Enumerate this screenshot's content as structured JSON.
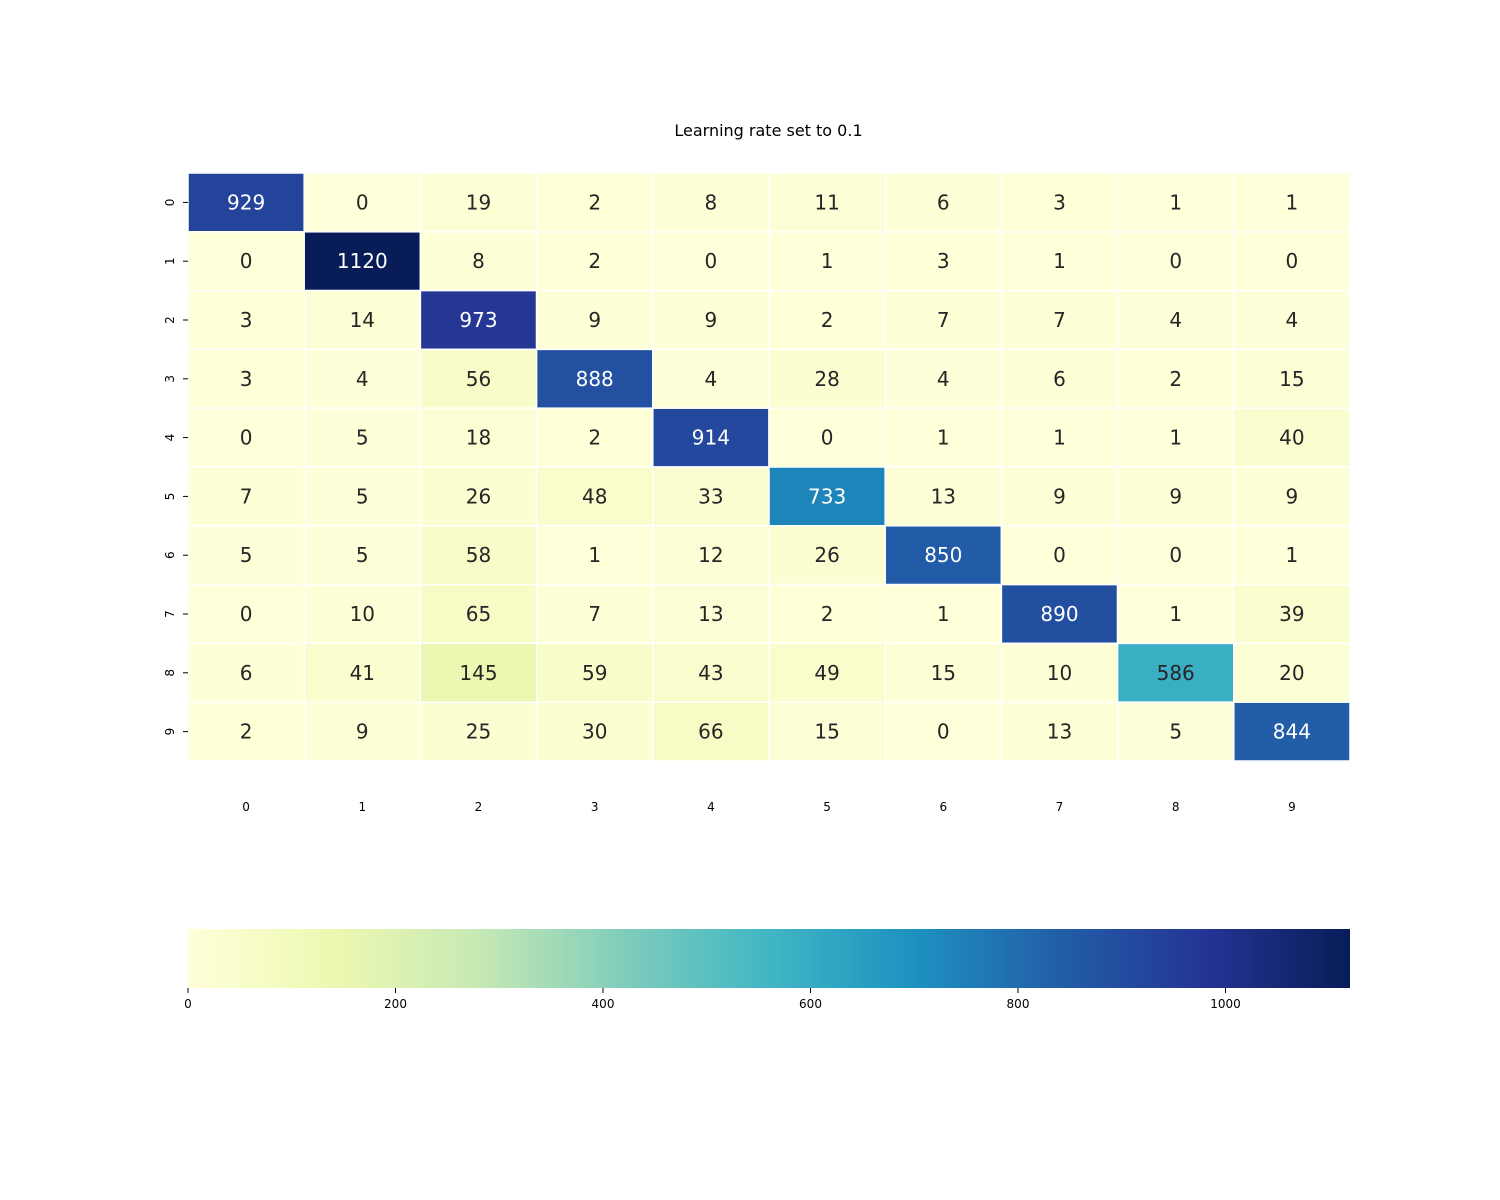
{
  "chart_data": {
    "type": "heatmap",
    "title": "Learning rate set to 0.1",
    "xlabel": "",
    "ylabel": "",
    "x_categories": [
      "0",
      "1",
      "2",
      "3",
      "4",
      "5",
      "6",
      "7",
      "8",
      "9"
    ],
    "y_categories": [
      "0",
      "1",
      "2",
      "3",
      "4",
      "5",
      "6",
      "7",
      "8",
      "9"
    ],
    "values": [
      [
        929,
        0,
        19,
        2,
        8,
        11,
        6,
        3,
        1,
        1
      ],
      [
        0,
        1120,
        8,
        2,
        0,
        1,
        3,
        1,
        0,
        0
      ],
      [
        3,
        14,
        973,
        9,
        9,
        2,
        7,
        7,
        4,
        4
      ],
      [
        3,
        4,
        56,
        888,
        4,
        28,
        4,
        6,
        2,
        15
      ],
      [
        0,
        5,
        18,
        2,
        914,
        0,
        1,
        1,
        1,
        40
      ],
      [
        7,
        5,
        26,
        48,
        33,
        733,
        13,
        9,
        9,
        9
      ],
      [
        5,
        5,
        58,
        1,
        12,
        26,
        850,
        0,
        0,
        1
      ],
      [
        0,
        10,
        65,
        7,
        13,
        2,
        1,
        890,
        1,
        39
      ],
      [
        6,
        41,
        145,
        59,
        43,
        49,
        15,
        10,
        586,
        20
      ],
      [
        2,
        9,
        25,
        30,
        66,
        15,
        0,
        13,
        5,
        844
      ]
    ],
    "colormap": "YlGnBu",
    "colorbar": {
      "range": [
        0,
        1120
      ],
      "ticks": [
        0,
        200,
        400,
        600,
        800,
        1000
      ],
      "orientation": "horizontal",
      "placement": "bottom"
    },
    "colors": {
      "stops": [
        "#ffffd9",
        "#edf8b1",
        "#c7e9b4",
        "#7fcdbb",
        "#41b6c4",
        "#1d91c0",
        "#225ea8",
        "#253494",
        "#081d58"
      ],
      "cell_border": "#ffffff",
      "label_dark": "#262626",
      "label_light": "#ffffff"
    }
  }
}
